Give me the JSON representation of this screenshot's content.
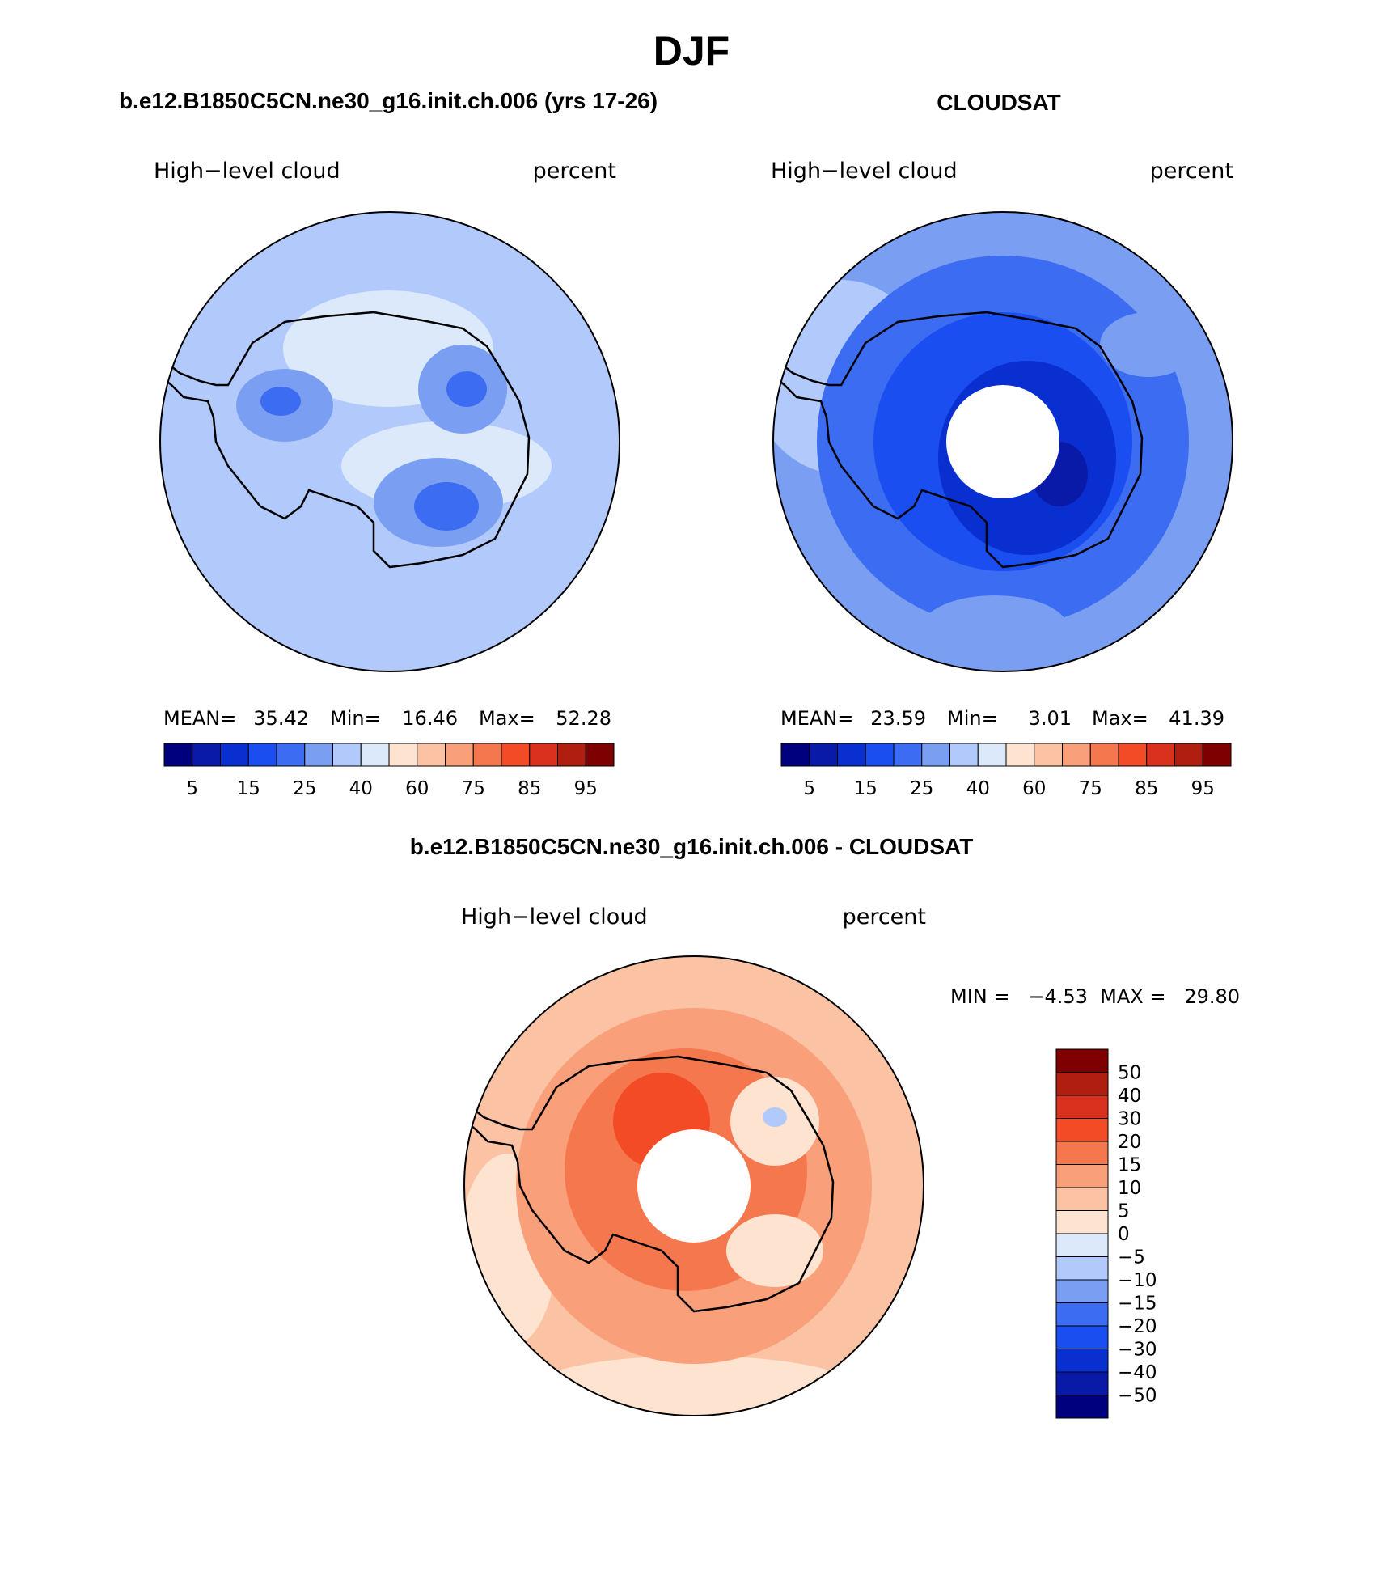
{
  "figure": {
    "season": "DJF",
    "left_case": "b.e12.B1850C5CN.ne30_g16.init.ch.006 (yrs 17-26)",
    "right_case": "CLOUDSAT",
    "diff_case": "b.e12.B1850C5CN.ne30_g16.init.ch.006 - CLOUDSAT"
  },
  "panels": {
    "model": {
      "variable": "High−level cloud",
      "units": "percent",
      "stats": {
        "mean_label": "MEAN=",
        "mean": "35.42",
        "min_label": "Min=",
        "min": "16.46",
        "max_label": "Max=",
        "max": "52.28"
      }
    },
    "obs": {
      "variable": "High−level cloud",
      "units": "percent",
      "stats": {
        "mean_label": "MEAN=",
        "mean": "23.59",
        "min_label": "Min=",
        "min": "3.01",
        "max_label": "Max=",
        "max": "41.39"
      }
    },
    "diff": {
      "variable": "High−level cloud",
      "units": "percent",
      "stats_text": "MIN =   −4.53  MAX =   29.80"
    }
  },
  "colorbars": {
    "abs_colors": [
      "#00007f",
      "#0a1aa8",
      "#0a2fd0",
      "#1a4ef0",
      "#3c6cf2",
      "#7a9ff2",
      "#b2c9fb",
      "#dce9fb",
      "#fde3d0",
      "#fbc2a4",
      "#f9a07b",
      "#f5774e",
      "#f44b27",
      "#d8321e",
      "#b01e10",
      "#7f0000"
    ],
    "abs_labels": [
      "5",
      "15",
      "25",
      "40",
      "60",
      "75",
      "85",
      "95"
    ],
    "diff_colors": [
      "#00007f",
      "#0a1aa8",
      "#0a2fd0",
      "#1a4ef0",
      "#3c6cf2",
      "#7a9ff2",
      "#b2c9fb",
      "#dce9fb",
      "#fde3d0",
      "#fbc2a4",
      "#f9a07b",
      "#f5774e",
      "#f44b27",
      "#d8321e",
      "#b01e10",
      "#7f0000"
    ],
    "diff_labels": [
      "−50",
      "−40",
      "−30",
      "−20",
      "−15",
      "−10",
      "−5",
      "0",
      "5",
      "10",
      "15",
      "20",
      "30",
      "40",
      "50"
    ]
  },
  "map_colors": {
    "model_base": "#b2c9fb",
    "obs_base": "#7a9ff2",
    "diff_base": "#fbc2a4",
    "coastline": "#000000",
    "missing": "#ffffff"
  }
}
